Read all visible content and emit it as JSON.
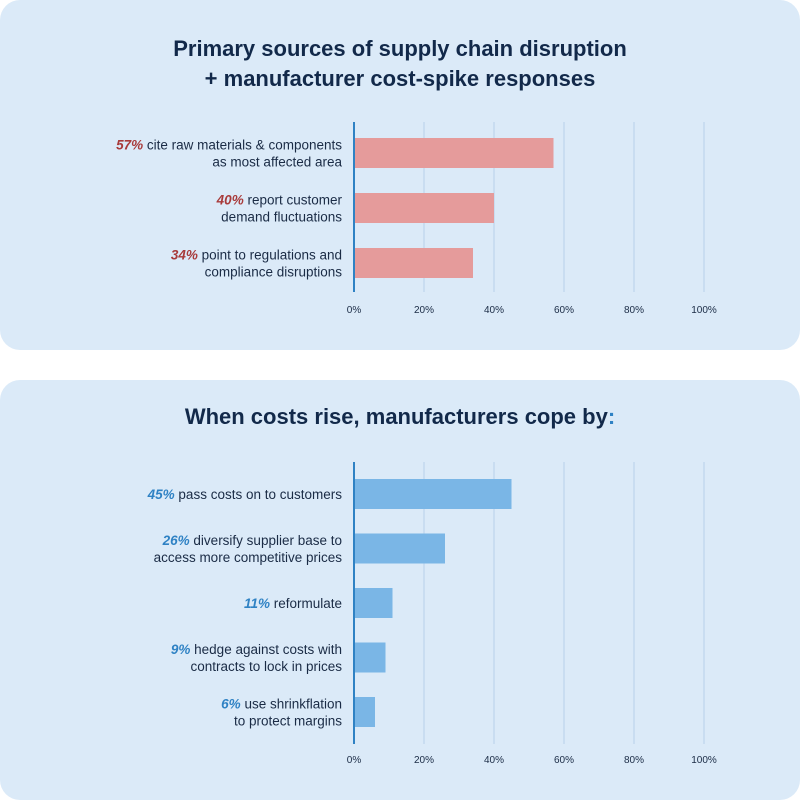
{
  "chart_data": [
    {
      "type": "bar",
      "orientation": "horizontal",
      "title": "Primary sources of supply chain disruption\n+ manufacturer cost-spike responses",
      "categories": [
        {
          "pct": "57%",
          "lines": [
            "cite raw materials & components",
            "as most affected area"
          ]
        },
        {
          "pct": "40%",
          "lines": [
            "report customer",
            "demand fluctuations"
          ]
        },
        {
          "pct": "34%",
          "lines": [
            "point to regulations and",
            "compliance disruptions"
          ]
        }
      ],
      "values": [
        57,
        40,
        34
      ],
      "xlim": [
        0,
        100
      ],
      "ticks": [
        "0%",
        "20%",
        "40%",
        "60%",
        "80%",
        "100%"
      ],
      "grid": true,
      "bar_color": "#e59b9b",
      "pct_color": "#a83a3a"
    },
    {
      "type": "bar",
      "orientation": "horizontal",
      "title": "When costs rise, manufacturers cope by",
      "title_suffix": ":",
      "categories": [
        {
          "pct": "45%",
          "lines": [
            "pass costs on to customers"
          ]
        },
        {
          "pct": "26%",
          "lines": [
            "diversify supplier base to",
            "access more competitive prices"
          ]
        },
        {
          "pct": "11%",
          "lines": [
            "reformulate"
          ]
        },
        {
          "pct": "9%",
          "lines": [
            "hedge against costs with",
            "contracts to lock in prices"
          ]
        },
        {
          "pct": "6%",
          "lines": [
            "use shrinkflation",
            "to protect margins"
          ]
        }
      ],
      "values": [
        45,
        26,
        11,
        9,
        6
      ],
      "xlim": [
        0,
        100
      ],
      "ticks": [
        "0%",
        "20%",
        "40%",
        "60%",
        "80%",
        "100%"
      ],
      "grid": true,
      "bar_color": "#7ab6e6",
      "pct_color": "#2f82c4"
    }
  ]
}
